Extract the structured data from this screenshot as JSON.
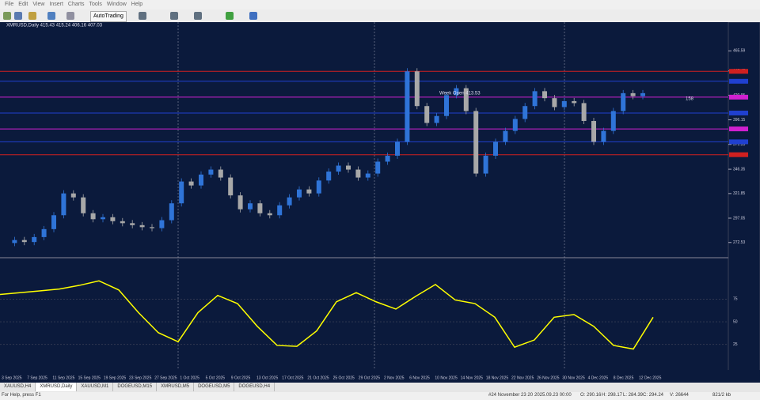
{
  "menu": [
    "File",
    "Edit",
    "View",
    "Insert",
    "Charts",
    "Tools",
    "Window",
    "Help"
  ],
  "toolbar": {
    "autotrading": "AutoTrading"
  },
  "chart_label": "XMRUSD,Daily 415.43 415.24 406.16 407.03",
  "chart_data": [
    {
      "type": "candlestick",
      "values": [
        272,
        275,
        273,
        278,
        286,
        300,
        322,
        318,
        302,
        296,
        298,
        294,
        292,
        290,
        288,
        287,
        295,
        312,
        334,
        330,
        341,
        346,
        338,
        320,
        306,
        312,
        302,
        300,
        310,
        318,
        326,
        322,
        335,
        344,
        350,
        346,
        338,
        342,
        354,
        360,
        374,
        445,
        410,
        393,
        400,
        421,
        428,
        405,
        342,
        360,
        374,
        385,
        397,
        410,
        425,
        418,
        409,
        415,
        413,
        395,
        374,
        385,
        405,
        423,
        420,
        423
      ],
      "up_color": "#2f74d8",
      "down_color": "#a8a8a8",
      "ylim": [
        258,
        493
      ],
      "yticks": [
        272.53,
        297.05,
        321.85,
        346.35,
        371.35,
        396.15,
        420.95,
        445.45,
        465.59
      ],
      "levels": [
        {
          "value": 445,
          "color": "#d02020"
        },
        {
          "value": 435,
          "color": "#2040d0"
        },
        {
          "value": 419,
          "color": "#d020d0"
        },
        {
          "value": 403,
          "color": "#2040d0"
        },
        {
          "value": 387,
          "color": "#d020d0"
        },
        {
          "value": 374,
          "color": "#2040d0"
        },
        {
          "value": 361,
          "color": "#d02020"
        }
      ],
      "annotations": [
        "Week Open 413.53",
        "158"
      ]
    },
    {
      "type": "line",
      "color": "#ffff00",
      "values": [
        80,
        82,
        84,
        86,
        90,
        95,
        85,
        60,
        38,
        28,
        60,
        79,
        70,
        45,
        24,
        23,
        40,
        72,
        82,
        72,
        64,
        78,
        91,
        74,
        70,
        55,
        22,
        30,
        55,
        58,
        45,
        24,
        20,
        55
      ],
      "ylim": [
        -3,
        117
      ],
      "yticks": [
        25,
        50,
        75
      ]
    }
  ],
  "x_labels": [
    "3 Sep 2025",
    "7 Sep 2025",
    "11 Sep 2025",
    "15 Sep 2025",
    "19 Sep 2025",
    "23 Sep 2025",
    "27 Sep 2025",
    "1 Oct 2025",
    "5 Oct 2025",
    "9 Oct 2025",
    "13 Oct 2025",
    "17 Oct 2025",
    "21 Oct 2025",
    "25 Oct 2025",
    "29 Oct 2025",
    "2 Nov 2025",
    "6 Nov 2025",
    "10 Nov 2025",
    "14 Nov 2025",
    "18 Nov 2025",
    "22 Nov 2025",
    "26 Nov 2025",
    "30 Nov 2025",
    "4 Dec 2025",
    "8 Dec 2025",
    "12 Dec 2025"
  ],
  "tabs": [
    "XAUUSD,H4",
    "XMRUSD,Daily",
    "XAUUSD,M1",
    "DOGEUSD,M15",
    "XMRUSD,M5",
    "DOGEUSD,M5",
    "DOGEUSD,H4"
  ],
  "status": {
    "help": "For Help, press F1",
    "profile": "#24 November 23 20",
    "time": "2025.09.23 00:00",
    "open": "O: 290.16",
    "high": "H: 298.17",
    "low": "L: 284.39",
    "close": "C: 294.24",
    "volume": "V: 26644",
    "traffic": "821/2 kb"
  }
}
